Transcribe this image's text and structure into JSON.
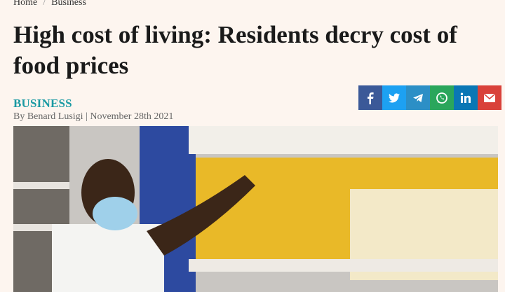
{
  "breadcrumb": [
    "Home",
    "Business"
  ],
  "article": {
    "title": "High cost of living: Residents decry cost of food prices",
    "section": "BUSINESS",
    "byline": "By Benard Lusigi | November 28th 2021"
  }
}
